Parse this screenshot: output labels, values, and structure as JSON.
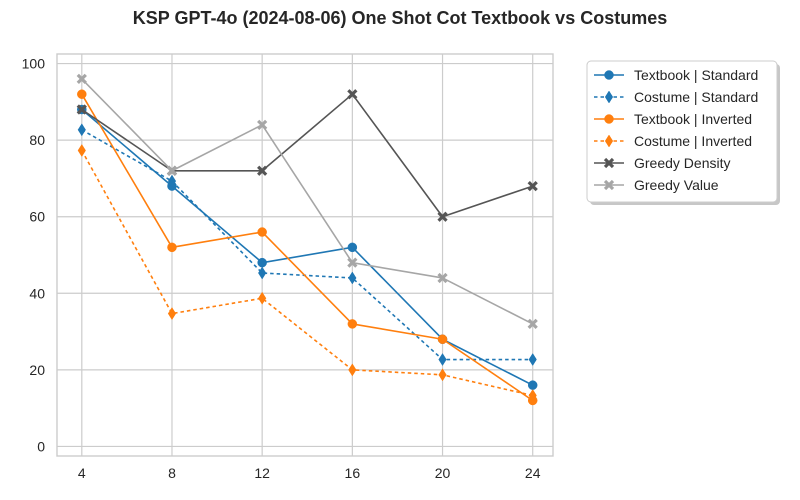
{
  "chart_data": {
    "type": "line",
    "title": "KSP GPT-4o (2024-08-06) One Shot Cot Textbook vs Costumes",
    "xlabel": "",
    "ylabel": "",
    "x": [
      4,
      8,
      12,
      16,
      20,
      24
    ],
    "xlim": [
      2.9,
      24.9
    ],
    "ylim": [
      -2.5,
      102.5
    ],
    "xticks": [
      4,
      8,
      12,
      16,
      20,
      24
    ],
    "yticks": [
      0,
      20,
      40,
      60,
      80,
      100
    ],
    "grid": true,
    "legend_position": "outside-top-right",
    "series": [
      {
        "name": "Textbook | Standard",
        "values": [
          88,
          68,
          48,
          52,
          28,
          16
        ],
        "color": "#1f77b4",
        "marker": "circle",
        "dashed": false
      },
      {
        "name": "Costume | Standard",
        "values": [
          82.7,
          69.3,
          45.3,
          44,
          22.7,
          22.7
        ],
        "color": "#1f77b4",
        "marker": "thin-diamond",
        "dashed": true
      },
      {
        "name": "Textbook | Inverted",
        "values": [
          92,
          52,
          56,
          32,
          28,
          12
        ],
        "color": "#ff7f0e",
        "marker": "circle",
        "dashed": false
      },
      {
        "name": "Costume | Inverted",
        "values": [
          77.3,
          34.7,
          38.7,
          20,
          18.7,
          13.3
        ],
        "color": "#ff7f0e",
        "marker": "thin-diamond",
        "dashed": true
      },
      {
        "name": "Greedy Density",
        "values": [
          88,
          72,
          72,
          92,
          60,
          68
        ],
        "color": "#555555",
        "marker": "x-filled",
        "dashed": false
      },
      {
        "name": "Greedy Value",
        "values": [
          96,
          72,
          84,
          48,
          44,
          32
        ],
        "color": "#a6a6a6",
        "marker": "x-filled",
        "dashed": false
      }
    ]
  }
}
